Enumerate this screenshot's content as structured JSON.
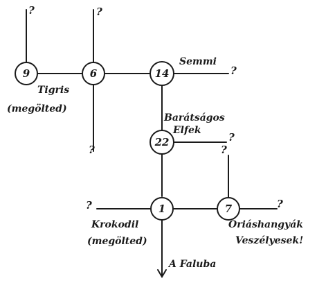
{
  "nodes": {
    "n9": "9",
    "n6": "6",
    "n14": "14",
    "n22": "22",
    "n1": "1",
    "n7": "7"
  },
  "labels": {
    "tigris_1": "Tigris",
    "tigris_2": "(megölted)",
    "semmi": "Semmi",
    "baratsagos_1": "Barátságos",
    "baratsagos_2": "Elfek",
    "krokodil_1": "Krokodil",
    "krokodil_2": "(megölted)",
    "oriashangyak_1": "Óriáshangyák",
    "oriashangyak_2": "Veszélyesek!",
    "falu": "A Faluba"
  },
  "unknown_mark": "?"
}
